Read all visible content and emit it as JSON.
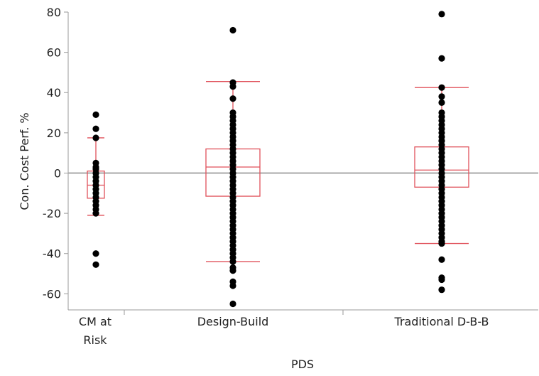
{
  "chart_data": {
    "type": "box",
    "xlabel": "PDS",
    "ylabel": "Con. Cost Perf. %",
    "ylim": [
      -68,
      80
    ],
    "yticks": [
      80,
      60,
      40,
      20,
      0,
      -20,
      -40,
      -60
    ],
    "reference_line_y": 0,
    "grid": false,
    "categories": [
      {
        "label_lines": [
          "CM at",
          "Risk"
        ],
        "box": {
          "whisker_low": -21,
          "q1": -12.5,
          "median": -6,
          "q3": 1,
          "whisker_high": 17.5
        },
        "points": [
          29,
          22,
          17.5,
          5,
          3,
          2,
          0,
          -2,
          -4,
          -6,
          -8,
          -10,
          -12,
          -14,
          -16,
          -18,
          -20,
          -40,
          -45.5
        ]
      },
      {
        "label_lines": [
          "Design-Build"
        ],
        "box": {
          "whisker_low": -44,
          "q1": -11.5,
          "median": 3,
          "q3": 12,
          "whisker_high": 45.5
        },
        "points": [
          71,
          45,
          43,
          37,
          30,
          28,
          26,
          24,
          22,
          20,
          18,
          16,
          14,
          12,
          10,
          8,
          6,
          4,
          2,
          0,
          -2,
          -4,
          -6,
          -8,
          -10,
          -12,
          -14,
          -16,
          -18,
          -20,
          -22,
          -24,
          -26,
          -28,
          -30,
          -32,
          -34,
          -36,
          -38,
          -40,
          -42,
          -44,
          -47,
          -48.5,
          -54,
          -56,
          -65
        ]
      },
      {
        "label_lines": [
          "Traditional D-B-B"
        ],
        "box": {
          "whisker_low": -35,
          "q1": -7,
          "median": 1.5,
          "q3": 13,
          "whisker_high": 42.5
        },
        "points": [
          79,
          57,
          42.5,
          38,
          35,
          30,
          28,
          26,
          24,
          22,
          20,
          18,
          16,
          14,
          12,
          10,
          8,
          6,
          4,
          2,
          0,
          -2,
          -4,
          -6,
          -8,
          -10,
          -12,
          -14,
          -16,
          -18,
          -20,
          -22,
          -24,
          -26,
          -28,
          -30,
          -32,
          -34,
          -35,
          -43,
          -52,
          -53,
          -58
        ]
      }
    ]
  }
}
